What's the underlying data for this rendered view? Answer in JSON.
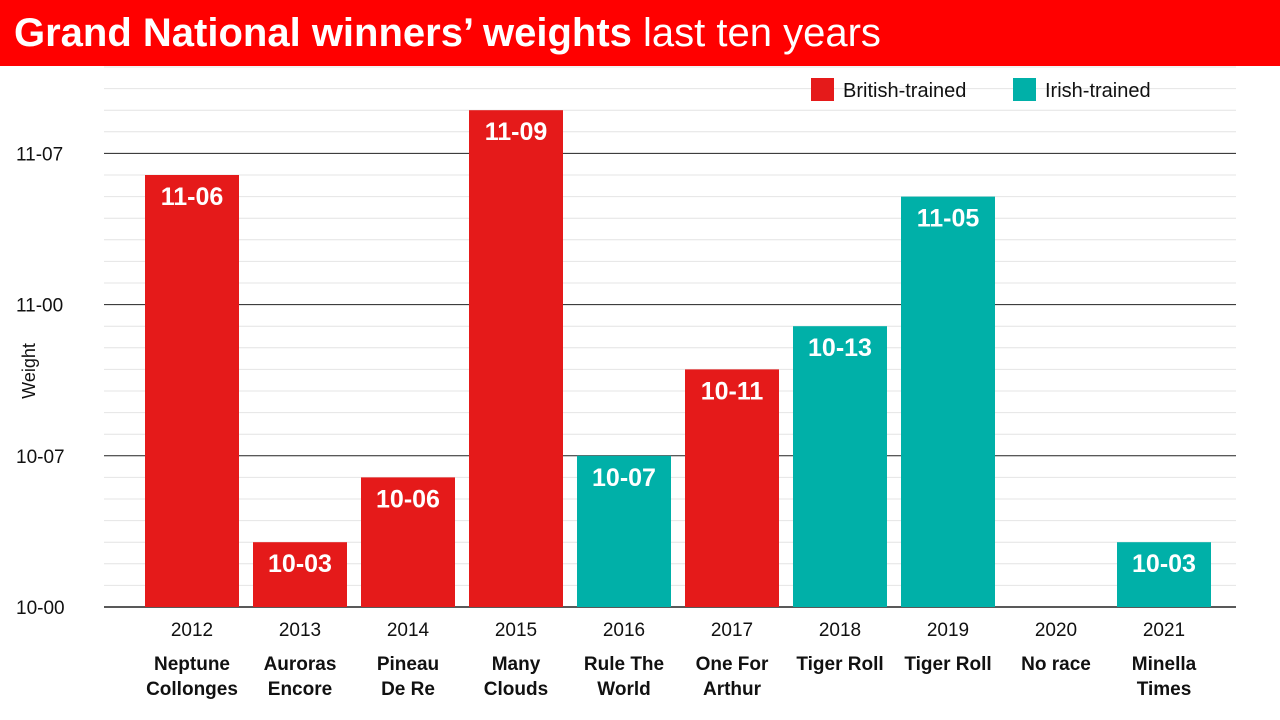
{
  "header": {
    "title_bold": "Grand National winners’ weights",
    "title_light": "last ten years"
  },
  "colors": {
    "banner": "#ff0000",
    "british": "#e51a1a",
    "irish": "#00b0a8",
    "grid_major": "#222222",
    "grid_minor": "#e4e4e4"
  },
  "chart_data": {
    "type": "bar",
    "ylabel": "Weight",
    "xlabel": "",
    "y_unit": "pounds above 10-00 (stones-pounds, 14 lb per stone)",
    "ylim_lbs": [
      0,
      25
    ],
    "y_ticks": [
      {
        "value": 0,
        "label": "10-00"
      },
      {
        "value": 7,
        "label": "10-07"
      },
      {
        "value": 14,
        "label": "11-00"
      },
      {
        "value": 21,
        "label": "11-07"
      }
    ],
    "legend": [
      {
        "name": "British-trained",
        "color": "#e51a1a"
      },
      {
        "name": "Irish-trained",
        "color": "#00b0a8"
      }
    ],
    "categories": [
      "2012",
      "2013",
      "2014",
      "2015",
      "2016",
      "2017",
      "2018",
      "2019",
      "2020",
      "2021"
    ],
    "bars": [
      {
        "year": "2012",
        "winner": [
          "Neptune",
          "Collonges"
        ],
        "label": "11-06",
        "value": 20,
        "series": "British-trained"
      },
      {
        "year": "2013",
        "winner": [
          "Auroras",
          "Encore"
        ],
        "label": "10-03",
        "value": 3,
        "series": "British-trained"
      },
      {
        "year": "2014",
        "winner": [
          "Pineau",
          "De Re"
        ],
        "label": "10-06",
        "value": 6,
        "series": "British-trained"
      },
      {
        "year": "2015",
        "winner": [
          "Many",
          "Clouds"
        ],
        "label": "11-09",
        "value": 23,
        "series": "British-trained"
      },
      {
        "year": "2016",
        "winner": [
          "Rule The",
          "World"
        ],
        "label": "10-07",
        "value": 7,
        "series": "Irish-trained"
      },
      {
        "year": "2017",
        "winner": [
          "One For",
          "Arthur"
        ],
        "label": "10-11",
        "value": 11,
        "series": "British-trained"
      },
      {
        "year": "2018",
        "winner": [
          "Tiger Roll"
        ],
        "label": "10-13",
        "value": 13,
        "series": "Irish-trained"
      },
      {
        "year": "2019",
        "winner": [
          "Tiger Roll"
        ],
        "label": "11-05",
        "value": 19,
        "series": "Irish-trained"
      },
      {
        "year": "2020",
        "winner": [
          "No race"
        ],
        "label": "",
        "value": null,
        "series": ""
      },
      {
        "year": "2021",
        "winner": [
          "Minella",
          "Times"
        ],
        "label": "10-03",
        "value": 3,
        "series": "Irish-trained"
      }
    ],
    "grid": true,
    "legend_position": "top-right"
  }
}
